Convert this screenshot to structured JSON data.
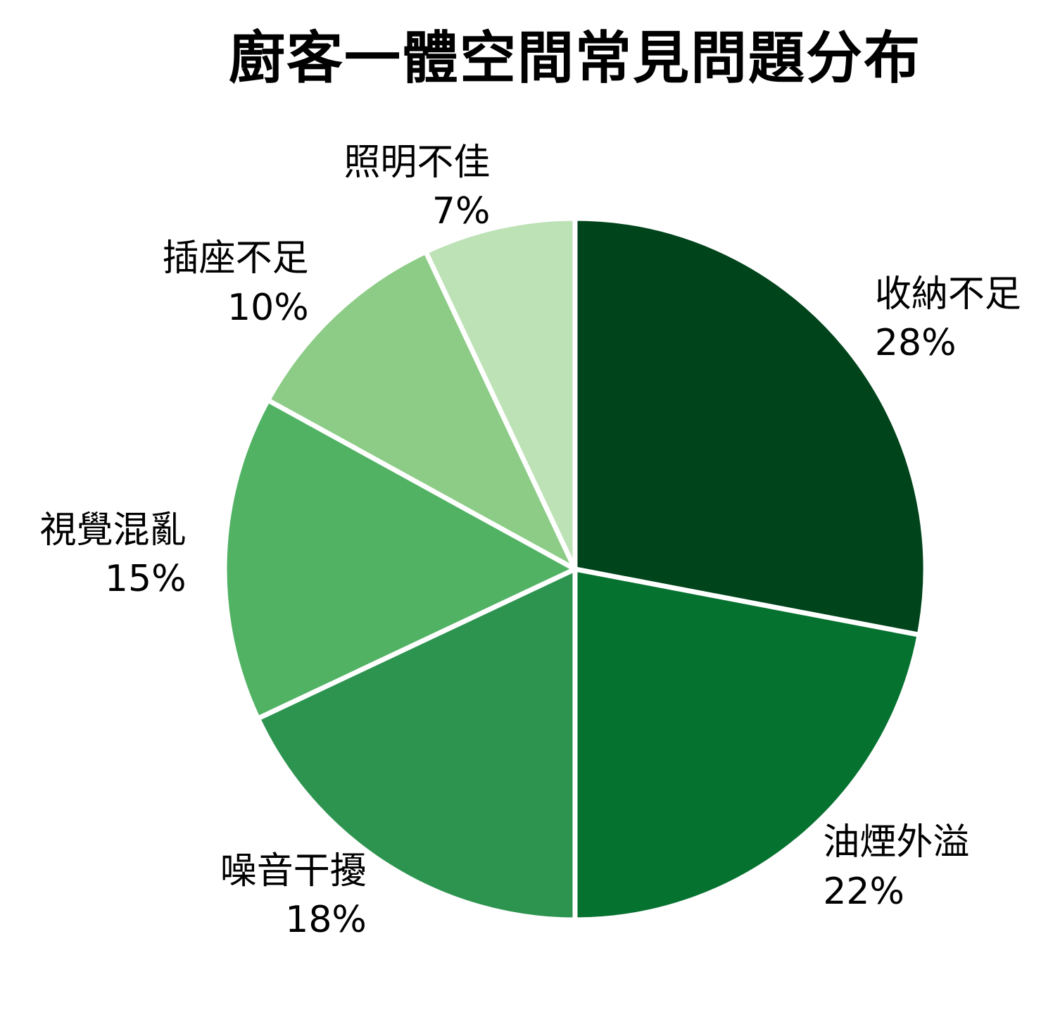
{
  "chart_data": {
    "type": "pie",
    "title": "廚客一體空間常見問題分布",
    "categories": [
      "收納不足",
      "油煙外溢",
      "噪音干擾",
      "視覺混亂",
      "插座不足",
      "照明不佳"
    ],
    "values": [
      28,
      22,
      18,
      15,
      10,
      7
    ],
    "unit": "%",
    "label_texts": [
      "收納不足 28%",
      "油煙外溢 22%",
      "噪音干擾 18%",
      "視覺混亂 15%",
      "插座不足 10%",
      "照明不佳 7%"
    ],
    "colors": [
      "#00441b",
      "#067230",
      "#2d9450",
      "#52b264",
      "#8ccc86",
      "#bde2b6"
    ],
    "slice_border_color": "#ffffff",
    "text_color": "#000000",
    "background_color": "#ffffff",
    "start_angle_deg": 0,
    "direction": "clockwise",
    "legend": "none",
    "labels_position": "outside"
  }
}
